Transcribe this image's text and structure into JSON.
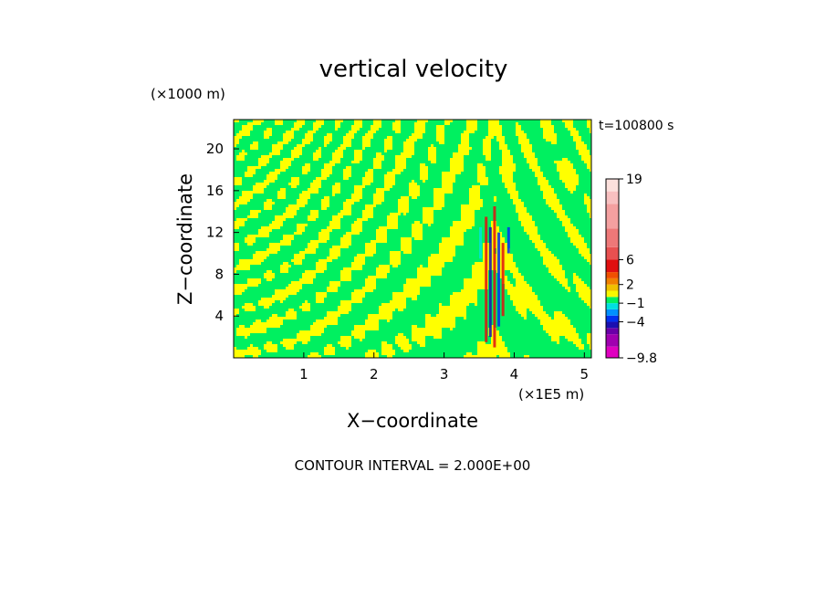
{
  "chart_data": {
    "type": "heatmap",
    "title": "vertical velocity",
    "xlabel": "X−coordinate",
    "ylabel": "Z−coordinate",
    "x_unit": "(×1E5 m)",
    "y_unit": "(×1000 m)",
    "time_label": "t=100800 s",
    "footer": "CONTOUR INTERVAL = 2.000E+00",
    "xlim": [
      0,
      5.1
    ],
    "ylim": [
      0,
      22.8
    ],
    "x_ticks": [
      "1",
      "2",
      "3",
      "4",
      "5"
    ],
    "y_ticks": [
      "4",
      "8",
      "12",
      "16",
      "20"
    ],
    "colorbar": {
      "labels": [
        "19",
        "6",
        "2",
        "−1",
        "−4",
        "−9.8"
      ],
      "min": -9.8,
      "max": 19,
      "levels": [
        {
          "lo": -9.8,
          "hi": -8,
          "color": "#e000c0"
        },
        {
          "lo": -8,
          "hi": -6,
          "color": "#a000b0"
        },
        {
          "lo": -6,
          "hi": -5,
          "color": "#6a00a8"
        },
        {
          "lo": -5,
          "hi": -4,
          "color": "#1a10b0"
        },
        {
          "lo": -4,
          "hi": -3,
          "color": "#0030f0"
        },
        {
          "lo": -3,
          "hi": -2,
          "color": "#0090ff"
        },
        {
          "lo": -2,
          "hi": -1,
          "color": "#00e0e0"
        },
        {
          "lo": -1,
          "hi": 0,
          "color": "#00f060"
        },
        {
          "lo": 0,
          "hi": 1,
          "color": "#f8f800"
        },
        {
          "lo": 1,
          "hi": 2,
          "color": "#f0c000"
        },
        {
          "lo": 2,
          "hi": 3,
          "color": "#f08000"
        },
        {
          "lo": 3,
          "hi": 4,
          "color": "#f05000"
        },
        {
          "lo": 4,
          "hi": 6,
          "color": "#e01010"
        },
        {
          "lo": 6,
          "hi": 8,
          "color": "#e85050"
        },
        {
          "lo": 8,
          "hi": 11,
          "color": "#ee7878"
        },
        {
          "lo": 11,
          "hi": 15,
          "color": "#f4a0a0"
        },
        {
          "lo": 15,
          "hi": 17,
          "color": "#f8c0c0"
        },
        {
          "lo": 17,
          "hi": 19,
          "color": "#fce0dc"
        }
      ]
    },
    "field_colors": {
      "positive": "#ffff00",
      "negative": "#00f060",
      "strong_up": "#e01010",
      "strong_down": "#0030f0",
      "core_down": "#1a10b0",
      "cyan": "#00e0e0"
    }
  }
}
